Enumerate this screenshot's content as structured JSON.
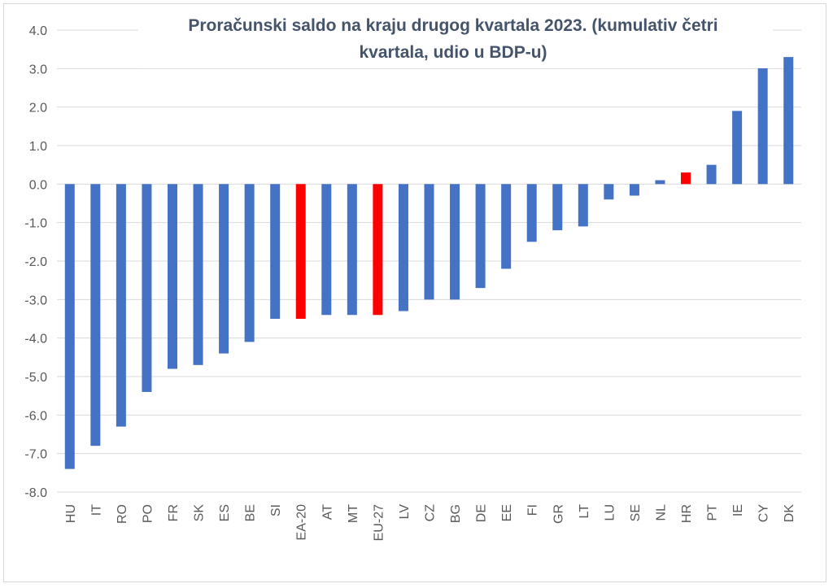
{
  "chart_data": {
    "type": "bar",
    "title": "Proračunski saldo na kraju drugog kvartala 2023. (kumulativ četri kvartala, udio u BDP-u)",
    "title_lines": [
      "Proračunski saldo na kraju drugog kvartala 2023. (kumulativ četri",
      "kvartala, udio u BDP-u)"
    ],
    "xlabel": "",
    "ylabel": "",
    "ylim": [
      -8,
      4
    ],
    "yticks": [
      "4.0",
      "3.0",
      "2.0",
      "1.0",
      "0.0",
      "-1.0",
      "-2.0",
      "-3.0",
      "-4.0",
      "-5.0",
      "-6.0",
      "-7.0",
      "-8.0"
    ],
    "grid": true,
    "categories": [
      "HU",
      "IT",
      "RO",
      "PO",
      "FR",
      "SK",
      "ES",
      "BE",
      "SI",
      "EA-20",
      "AT",
      "MT",
      "EU-27",
      "LV",
      "CZ",
      "BG",
      "DE",
      "EE",
      "FI",
      "GR",
      "LT",
      "LU",
      "SE",
      "NL",
      "HR",
      "PT",
      "IE",
      "CY",
      "DK"
    ],
    "values": [
      -7.4,
      -6.8,
      -6.3,
      -5.4,
      -4.8,
      -4.7,
      -4.4,
      -4.1,
      -3.5,
      -3.5,
      -3.4,
      -3.4,
      -3.4,
      -3.3,
      -3.0,
      -3.0,
      -2.7,
      -2.2,
      -1.5,
      -1.2,
      -1.1,
      -0.4,
      -0.3,
      0.1,
      0.3,
      0.5,
      1.9,
      3.2,
      3.3
    ],
    "highlighted": [
      "EA-20",
      "EU-27",
      "HR"
    ],
    "colors": {
      "bar": "#4472c4",
      "highlight": "#ff0000",
      "grid": "#d9d9d9",
      "title": "#44546a"
    }
  }
}
